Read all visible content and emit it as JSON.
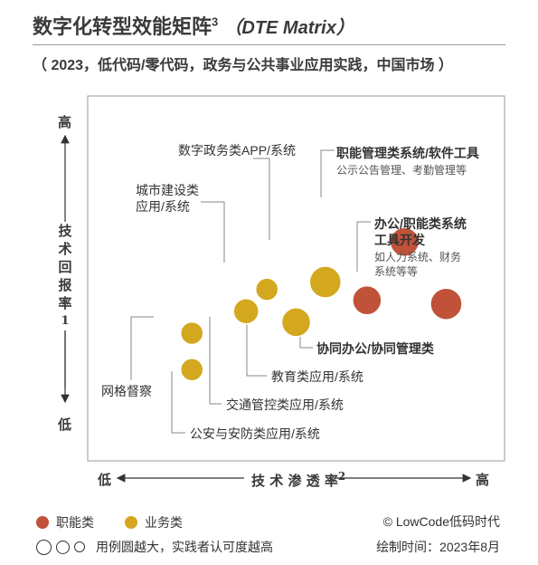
{
  "header": {
    "title": "数字化转型效能矩阵",
    "title_sup": "3",
    "title_en": "（DTE Matrix）",
    "subtitle": "（ 2023，低代码/零代码，政务与公共事业应用实践，中国市场 ）"
  },
  "axes": {
    "y_high": "高",
    "y_low": "低",
    "y_label": [
      "技",
      "术",
      "回",
      "报",
      "率"
    ],
    "y_sup": "1",
    "x_low": "低",
    "x_high": "高",
    "x_label": "技 术 渗 透 率",
    "x_sup": "2"
  },
  "legend": {
    "job": "职能类",
    "biz": "业务类",
    "size_note": "用例圆越大，实践者认可度越高",
    "colors": {
      "job": "#c0523a",
      "biz": "#d4a81e"
    }
  },
  "footer": {
    "copyright": "© LowCode低码时代",
    "date": "绘制时间：2023年8月"
  },
  "chart_data": {
    "type": "scatter",
    "title": "数字化转型效能矩阵",
    "xlabel": "技术渗透率",
    "ylabel": "技术回报率",
    "points": [
      {
        "category": "职能类",
        "label": "职能管理类系统/软件工具",
        "note": "公示公告管理、考勤管理等",
        "x": 0.76,
        "y": 0.6,
        "size": 0.32
      },
      {
        "category": "职能类",
        "label": "办公/职能类系统工具开发",
        "note": "如人力系统、财务系统等等",
        "x": 0.86,
        "y": 0.43,
        "size": 0.35
      },
      {
        "category": "职能类",
        "label": "协同办公/协同管理类",
        "note": "",
        "x": 0.67,
        "y": 0.44,
        "size": 0.32
      },
      {
        "category": "业务类",
        "label": "数字政务类APP/系统",
        "note": "",
        "x": 0.57,
        "y": 0.49,
        "size": 0.35
      },
      {
        "category": "业务类",
        "label": "城市建设类应用/系统",
        "note": "",
        "x": 0.43,
        "y": 0.47,
        "size": 0.25
      },
      {
        "category": "业务类",
        "label": "教育类应用/系统",
        "note": "",
        "x": 0.5,
        "y": 0.38,
        "size": 0.32
      },
      {
        "category": "业务类",
        "label": "交通管控类应用/系统",
        "note": "",
        "x": 0.38,
        "y": 0.41,
        "size": 0.28
      },
      {
        "category": "业务类",
        "label": "网格督察",
        "note": "",
        "x": 0.25,
        "y": 0.35,
        "size": 0.25
      },
      {
        "category": "业务类",
        "label": "公安与安防类应用/系统",
        "note": "",
        "x": 0.25,
        "y": 0.25,
        "size": 0.25
      }
    ]
  }
}
